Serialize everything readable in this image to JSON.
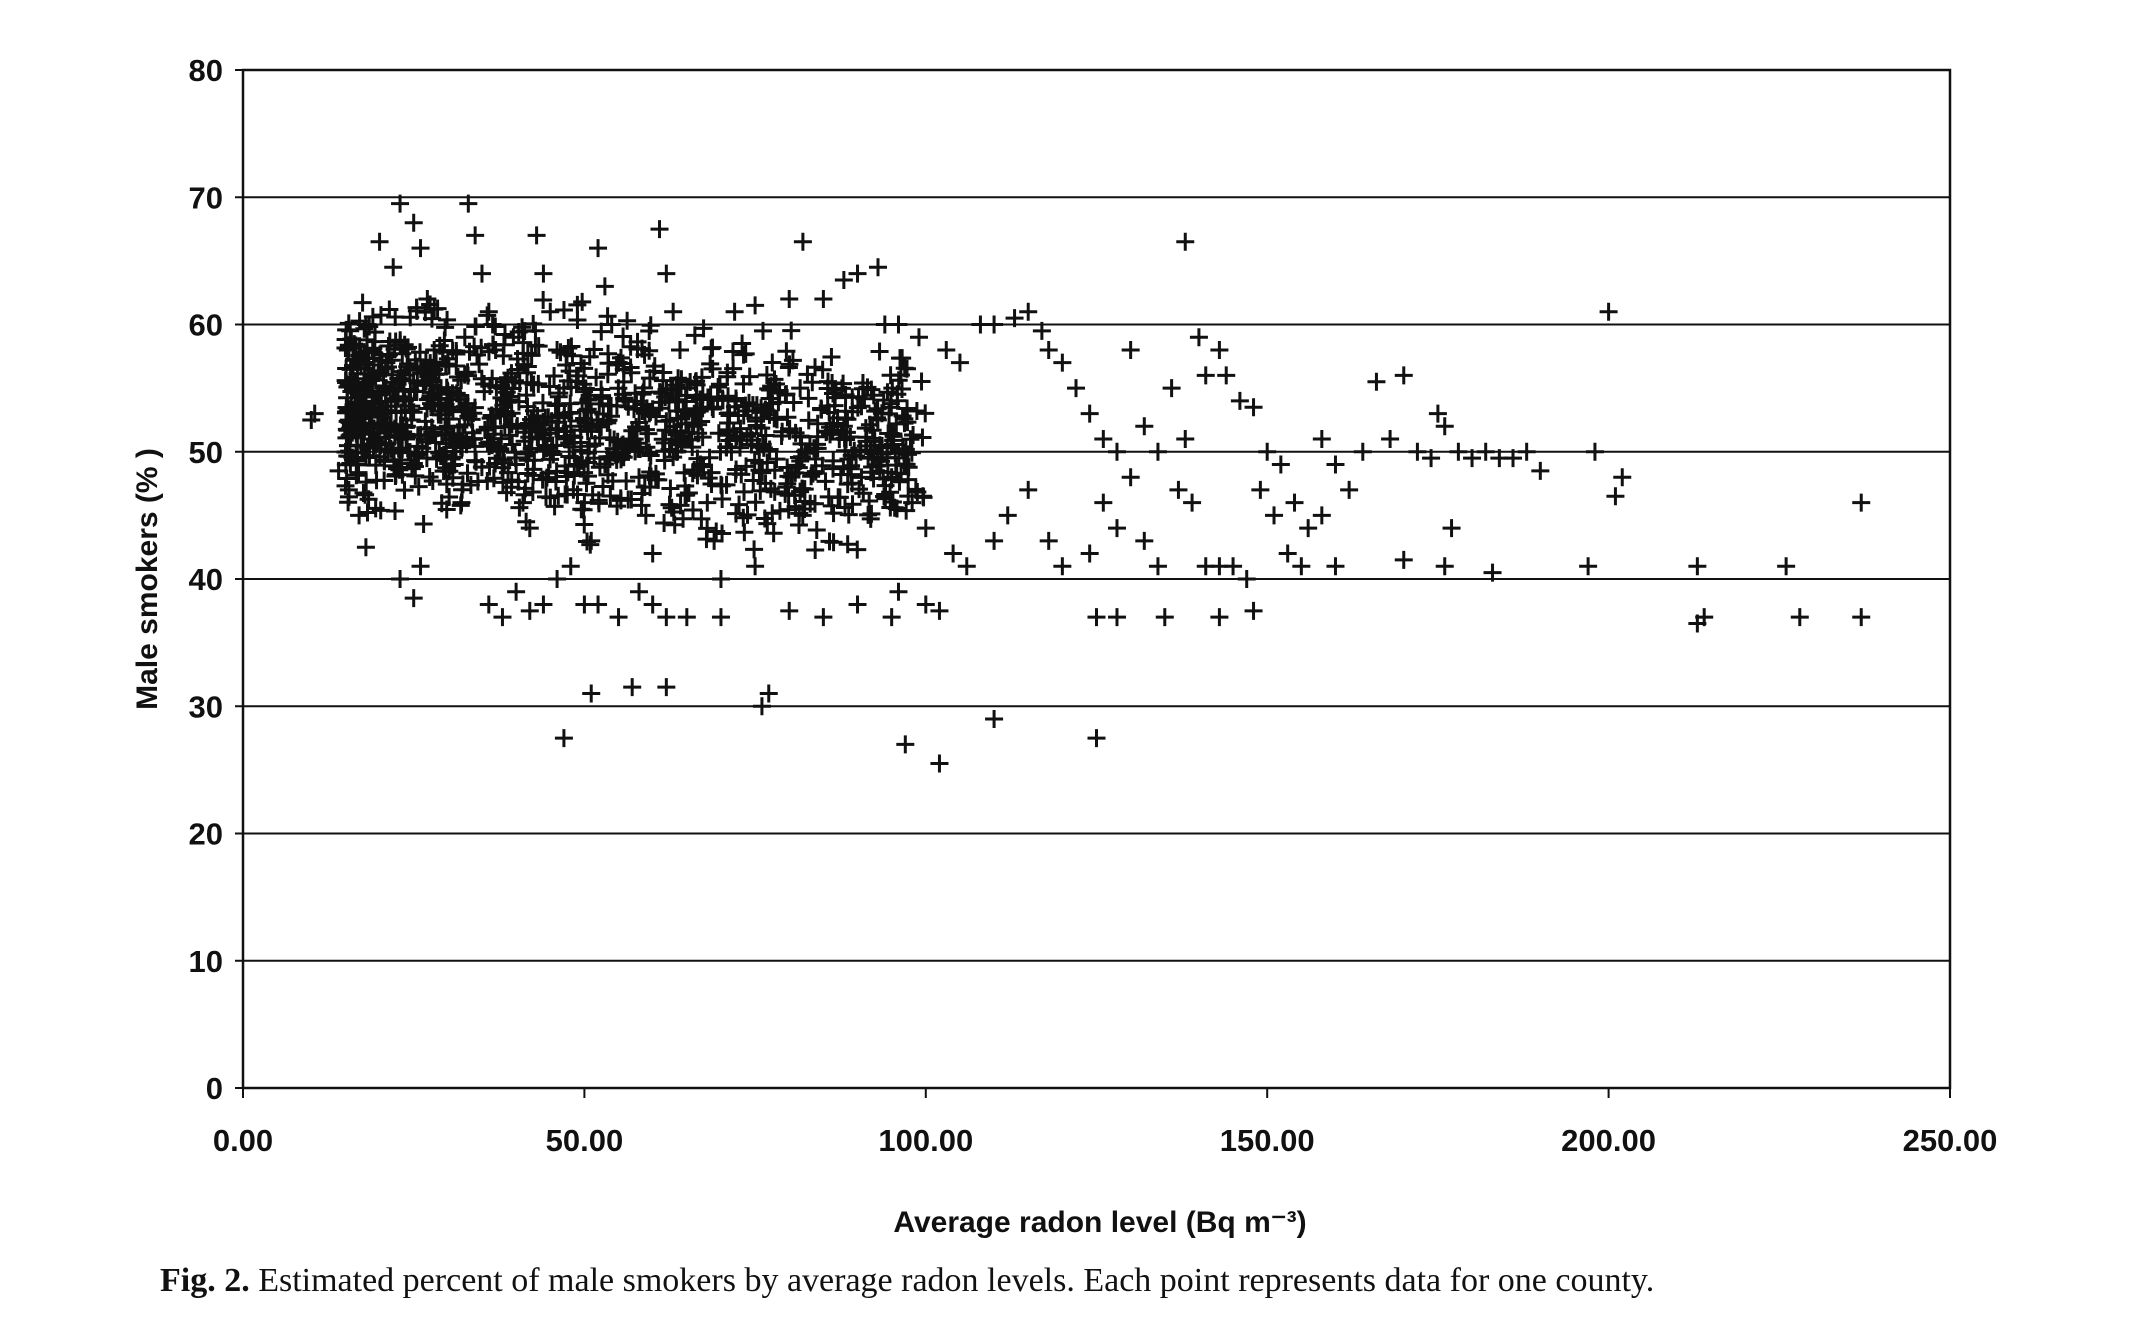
{
  "chart_data": {
    "type": "scatter",
    "xlabel": "Average radon level (Bq m⁻³)",
    "ylabel": "Male smokers (% )",
    "xlim": [
      0,
      250
    ],
    "ylim": [
      0,
      80
    ],
    "x_ticks": [
      "0.00",
      "50.00",
      "100.00",
      "150.00",
      "200.00",
      "250.00"
    ],
    "y_ticks": [
      "0",
      "10",
      "20",
      "30",
      "40",
      "50",
      "60",
      "70",
      "80"
    ],
    "grid": "horizontal",
    "marker": "plus",
    "marker_color": "#111111",
    "cluster": {
      "description_points_shown": "dense cloud of roughly 1,300 county points",
      "x_range": [
        15,
        100
      ],
      "y_range": [
        37,
        70
      ]
    },
    "points": [
      [
        10,
        52.5
      ],
      [
        10.5,
        53
      ],
      [
        14,
        48.5
      ],
      [
        15.5,
        47
      ],
      [
        17,
        45
      ],
      [
        16,
        51.5
      ],
      [
        18,
        42.5
      ],
      [
        18,
        60
      ],
      [
        20,
        66.5
      ],
      [
        19,
        58
      ],
      [
        22,
        64.5
      ],
      [
        23,
        69.5
      ],
      [
        21,
        57
      ],
      [
        22,
        55
      ],
      [
        24,
        52
      ],
      [
        25,
        68
      ],
      [
        26,
        66
      ],
      [
        27,
        62
      ],
      [
        28,
        58
      ],
      [
        29,
        55
      ],
      [
        30,
        52
      ],
      [
        31,
        49
      ],
      [
        32,
        46
      ],
      [
        33,
        69.5
      ],
      [
        34,
        67
      ],
      [
        35,
        64
      ],
      [
        36,
        61
      ],
      [
        37,
        58
      ],
      [
        38,
        55
      ],
      [
        39,
        52
      ],
      [
        40,
        49
      ],
      [
        41,
        46
      ],
      [
        42,
        44
      ],
      [
        43,
        67
      ],
      [
        44,
        64
      ],
      [
        45,
        61
      ],
      [
        46,
        58
      ],
      [
        47,
        55
      ],
      [
        48,
        52
      ],
      [
        49,
        49
      ],
      [
        50,
        46
      ],
      [
        51,
        43
      ],
      [
        52,
        66
      ],
      [
        53,
        63
      ],
      [
        54,
        60
      ],
      [
        55,
        57
      ],
      [
        56,
        54
      ],
      [
        57,
        51
      ],
      [
        58,
        48
      ],
      [
        59,
        45
      ],
      [
        60,
        42
      ],
      [
        61,
        67.5
      ],
      [
        62,
        64
      ],
      [
        63,
        61
      ],
      [
        64,
        58
      ],
      [
        65,
        55
      ],
      [
        66,
        52
      ],
      [
        67,
        49
      ],
      [
        68,
        46
      ],
      [
        69,
        43
      ],
      [
        70,
        40
      ],
      [
        23,
        40
      ],
      [
        25,
        38.5
      ],
      [
        26,
        41
      ],
      [
        36,
        38
      ],
      [
        38,
        37
      ],
      [
        40,
        39
      ],
      [
        42,
        37.5
      ],
      [
        44,
        38
      ],
      [
        46,
        40
      ],
      [
        48,
        41
      ],
      [
        50,
        38
      ],
      [
        52,
        38
      ],
      [
        55,
        37
      ],
      [
        58,
        39
      ],
      [
        60,
        38
      ],
      [
        62,
        37
      ],
      [
        65,
        37
      ],
      [
        70,
        37
      ],
      [
        75,
        41
      ],
      [
        80,
        37.5
      ],
      [
        85,
        37
      ],
      [
        90,
        38
      ],
      [
        95,
        37
      ],
      [
        96,
        39
      ],
      [
        100,
        38
      ],
      [
        102,
        37.5
      ],
      [
        47,
        27.5
      ],
      [
        51,
        31
      ],
      [
        57,
        31.5
      ],
      [
        62,
        31.5
      ],
      [
        76,
        30
      ],
      [
        77,
        31
      ],
      [
        97,
        27
      ],
      [
        102,
        25.5
      ],
      [
        110,
        29
      ],
      [
        125,
        27.5
      ],
      [
        72,
        61
      ],
      [
        75,
        61.5
      ],
      [
        80,
        62
      ],
      [
        82,
        66.5
      ],
      [
        85,
        62
      ],
      [
        88,
        63.5
      ],
      [
        90,
        64
      ],
      [
        93,
        64.5
      ],
      [
        94,
        60
      ],
      [
        96,
        60
      ],
      [
        99,
        59
      ],
      [
        103,
        58
      ],
      [
        105,
        57
      ],
      [
        108,
        60
      ],
      [
        110,
        60
      ],
      [
        113,
        60.5
      ],
      [
        115,
        61
      ],
      [
        117,
        59.5
      ],
      [
        118,
        58
      ],
      [
        120,
        57
      ],
      [
        122,
        55
      ],
      [
        124,
        53
      ],
      [
        126,
        51
      ],
      [
        128,
        50
      ],
      [
        130,
        58
      ],
      [
        132,
        52
      ],
      [
        134,
        50
      ],
      [
        136,
        55
      ],
      [
        138,
        51
      ],
      [
        140,
        59
      ],
      [
        141,
        56
      ],
      [
        143,
        58
      ],
      [
        144,
        56
      ],
      [
        146,
        54
      ],
      [
        148,
        53.5
      ],
      [
        150,
        50
      ],
      [
        152,
        49
      ],
      [
        154,
        46
      ],
      [
        156,
        44
      ],
      [
        158,
        51
      ],
      [
        160,
        49
      ],
      [
        162,
        47
      ],
      [
        164,
        50
      ],
      [
        166,
        55.5
      ],
      [
        168,
        51
      ],
      [
        170,
        56
      ],
      [
        172,
        50
      ],
      [
        174,
        49.5
      ],
      [
        175,
        53
      ],
      [
        176,
        52
      ],
      [
        177,
        44
      ],
      [
        178,
        50
      ],
      [
        180,
        49.5
      ],
      [
        182,
        50
      ],
      [
        184,
        49.5
      ],
      [
        186,
        49.5
      ],
      [
        188,
        50
      ],
      [
        190,
        48.5
      ],
      [
        198,
        50
      ],
      [
        200,
        61
      ],
      [
        201,
        46.5
      ],
      [
        202,
        48
      ],
      [
        88,
        52
      ],
      [
        92,
        50
      ],
      [
        95,
        48
      ],
      [
        98,
        46
      ],
      [
        100,
        44
      ],
      [
        104,
        42
      ],
      [
        106,
        41
      ],
      [
        110,
        43
      ],
      [
        112,
        45
      ],
      [
        115,
        47
      ],
      [
        118,
        43
      ],
      [
        120,
        41
      ],
      [
        124,
        42
      ],
      [
        126,
        46
      ],
      [
        128,
        44
      ],
      [
        130,
        48
      ],
      [
        132,
        43
      ],
      [
        134,
        41
      ],
      [
        137,
        47
      ],
      [
        139,
        46
      ],
      [
        141,
        41
      ],
      [
        143,
        41
      ],
      [
        145,
        41
      ],
      [
        147,
        40
      ],
      [
        149,
        47
      ],
      [
        151,
        45
      ],
      [
        153,
        42
      ],
      [
        155,
        41
      ],
      [
        158,
        45
      ],
      [
        160,
        41
      ],
      [
        170,
        41.5
      ],
      [
        176,
        41
      ],
      [
        183,
        40.5
      ],
      [
        197,
        41
      ],
      [
        213,
        41
      ],
      [
        226,
        41
      ],
      [
        237,
        46
      ],
      [
        125,
        37
      ],
      [
        128,
        37
      ],
      [
        135,
        37
      ],
      [
        143,
        37
      ],
      [
        148,
        37.5
      ],
      [
        213,
        36.5
      ],
      [
        214,
        37
      ],
      [
        228,
        37
      ],
      [
        237,
        37
      ],
      [
        138,
        66.5
      ]
    ]
  },
  "caption": {
    "label": "Fig. 2.",
    "text": "Estimated percent of male smokers by average radon levels. Each point represents data for one county."
  }
}
